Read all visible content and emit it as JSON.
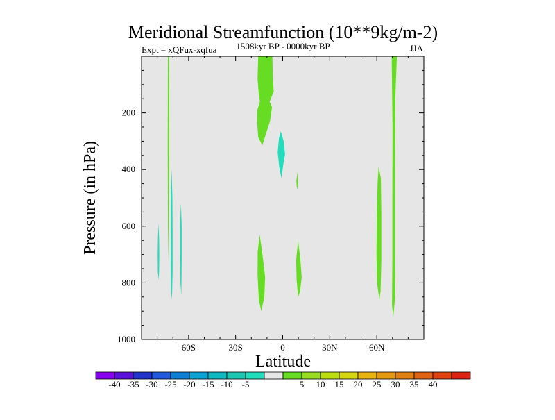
{
  "chart_data": {
    "type": "heatmap",
    "title": "Meridional Streamfunction (10**9kg/m-2)",
    "subtitle_left": "Expt = xQFux-xqfua",
    "subtitle_center": "1508kyr BP - 0000kyr BP",
    "subtitle_right": "JJA",
    "xlabel": "Latitude",
    "ylabel": "Pressure (in hPa)",
    "xlim": [
      -90,
      90
    ],
    "ylim": [
      1000,
      0
    ],
    "x_ticks": [
      {
        "value": -60,
        "label": "60S"
      },
      {
        "value": -30,
        "label": "30S"
      },
      {
        "value": 0,
        "label": "0"
      },
      {
        "value": 30,
        "label": "30N"
      },
      {
        "value": 60,
        "label": "60N"
      }
    ],
    "y_ticks": [
      {
        "value": 200,
        "label": "200"
      },
      {
        "value": 400,
        "label": "400"
      },
      {
        "value": 600,
        "label": "600"
      },
      {
        "value": 800,
        "label": "800"
      },
      {
        "value": 1000,
        "label": "1000"
      }
    ],
    "background_level": "-5 to 5",
    "contours": [
      {
        "level": "5 to 10",
        "color": "#66dd22",
        "points": [
          [
            -73.2,
            0
          ],
          [
            -72.5,
            0
          ],
          [
            -72.3,
            150
          ],
          [
            -72.4,
            400
          ],
          [
            -72.8,
            720
          ],
          [
            -73.2,
            600
          ],
          [
            -73.3,
            300
          ]
        ]
      },
      {
        "level": "5 to 10",
        "color": "#66dd22",
        "points": [
          [
            -15.6,
            0
          ],
          [
            -6.6,
            0
          ],
          [
            -6.3,
            80
          ],
          [
            -5.7,
            125
          ],
          [
            -8.3,
            160
          ],
          [
            -6.8,
            180
          ],
          [
            -8.1,
            230
          ],
          [
            -10.5,
            270
          ],
          [
            -13.0,
            315
          ],
          [
            -15.6,
            285
          ],
          [
            -16.3,
            230
          ],
          [
            -16.2,
            190
          ],
          [
            -14.5,
            160
          ],
          [
            -15.3,
            130
          ],
          [
            -16.0,
            80
          ]
        ]
      },
      {
        "level": "5 to 10",
        "color": "#66dd22",
        "points": [
          [
            -14.7,
            630
          ],
          [
            -12.9,
            700
          ],
          [
            -11.2,
            780
          ],
          [
            -11.7,
            850
          ],
          [
            -13.6,
            900
          ],
          [
            -15.2,
            860
          ],
          [
            -16.0,
            770
          ],
          [
            -15.9,
            690
          ]
        ]
      },
      {
        "level": "5 to 10",
        "color": "#66dd22",
        "points": [
          [
            9.8,
            650
          ],
          [
            11.3,
            720
          ],
          [
            12.1,
            780
          ],
          [
            11.1,
            830
          ],
          [
            9.8,
            850
          ],
          [
            8.9,
            790
          ],
          [
            8.6,
            720
          ]
        ]
      },
      {
        "level": "5 to 10",
        "color": "#66dd22",
        "points": [
          [
            9.4,
            410
          ],
          [
            9.9,
            455
          ],
          [
            9.1,
            470
          ],
          [
            8.7,
            440
          ]
        ]
      },
      {
        "level": "5 to 10",
        "color": "#66dd22",
        "points": [
          [
            61.1,
            390
          ],
          [
            62.6,
            430
          ],
          [
            62.9,
            560
          ],
          [
            62.9,
            720
          ],
          [
            62.4,
            830
          ],
          [
            61.6,
            860
          ],
          [
            60.2,
            800
          ],
          [
            59.8,
            700
          ],
          [
            60.1,
            550
          ],
          [
            60.5,
            450
          ]
        ]
      },
      {
        "level": "5 to 10",
        "color": "#66dd22",
        "points": [
          [
            69.5,
            0
          ],
          [
            72.8,
            0
          ],
          [
            71.8,
            150
          ],
          [
            71.6,
            400
          ],
          [
            71.6,
            700
          ],
          [
            71.7,
            850
          ],
          [
            70.5,
            920
          ],
          [
            69.7,
            880
          ],
          [
            69.9,
            700
          ],
          [
            69.9,
            500
          ],
          [
            70.0,
            250
          ]
        ]
      },
      {
        "level": "-10 to -5",
        "color": "#22ddbb",
        "points": [
          [
            -1.2,
            265
          ],
          [
            0.6,
            300
          ],
          [
            1.5,
            345
          ],
          [
            0.3,
            385
          ],
          [
            -0.8,
            430
          ],
          [
            -2.2,
            390
          ],
          [
            -3.2,
            340
          ],
          [
            -2.4,
            290
          ]
        ]
      },
      {
        "level": "-10 to -5",
        "color": "#22ddbb",
        "points": [
          [
            -79.2,
            590
          ],
          [
            -78.8,
            640
          ],
          [
            -78.7,
            700
          ],
          [
            -78.8,
            760
          ],
          [
            -79.1,
            790
          ],
          [
            -79.6,
            760
          ],
          [
            -79.7,
            700
          ],
          [
            -79.5,
            640
          ]
        ]
      },
      {
        "level": "-10 to -5",
        "color": "#22ddbb",
        "points": [
          [
            -70.8,
            400
          ],
          [
            -70.3,
            500
          ],
          [
            -70.2,
            620
          ],
          [
            -70.2,
            760
          ],
          [
            -70.6,
            860
          ],
          [
            -71.3,
            820
          ],
          [
            -71.4,
            720
          ],
          [
            -71.4,
            600
          ],
          [
            -71.4,
            480
          ]
        ]
      },
      {
        "level": "-10 to -5",
        "color": "#22ddbb",
        "points": [
          [
            -64.9,
            520
          ],
          [
            -64.4,
            600
          ],
          [
            -64.4,
            720
          ],
          [
            -64.6,
            845
          ],
          [
            -65.2,
            800
          ],
          [
            -65.3,
            680
          ],
          [
            -65.3,
            580
          ]
        ]
      }
    ],
    "colorbar": {
      "colors": [
        "#8800ee",
        "#5a12d8",
        "#2233cc",
        "#2258dd",
        "#0c7fd6",
        "#0aa4d4",
        "#10b8bf",
        "#1ec8b0",
        "#22ddbb",
        "#e6e6e6",
        "#66dd22",
        "#99dd22",
        "#bbdd11",
        "#d5d611",
        "#e6b511",
        "#e69a11",
        "#e27f11",
        "#e06311",
        "#e04411",
        "#dd2211"
      ],
      "labels": [
        "-40",
        "-35",
        "-30",
        "-25",
        "-20",
        "-15",
        "-10",
        "-5",
        "5",
        "10",
        "15",
        "20",
        "25",
        "30",
        "35",
        "40"
      ]
    }
  }
}
